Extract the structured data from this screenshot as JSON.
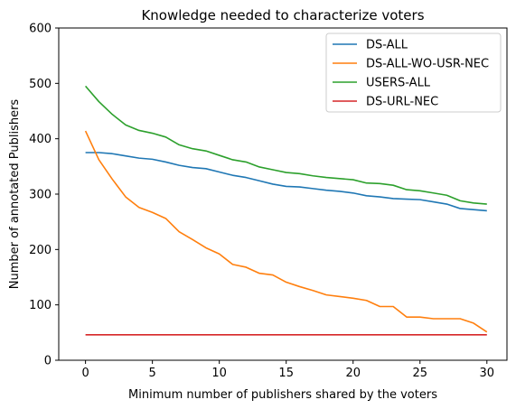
{
  "chart_data": {
    "type": "line",
    "title": "Knowledge needed to characterize voters",
    "xlabel": "Minimum number of publishers shared by the voters",
    "ylabel": "Number of annotated Publishers",
    "xlim": [
      -2,
      31.5
    ],
    "ylim": [
      0,
      600
    ],
    "xticks": [
      0,
      5,
      10,
      15,
      20,
      25,
      30
    ],
    "yticks": [
      0,
      100,
      200,
      300,
      400,
      500,
      600
    ],
    "grid": false,
    "legend_position": "top-right",
    "x": [
      0,
      1,
      2,
      3,
      4,
      5,
      6,
      7,
      8,
      9,
      10,
      11,
      12,
      13,
      14,
      15,
      16,
      17,
      18,
      19,
      20,
      21,
      22,
      23,
      24,
      25,
      26,
      27,
      28,
      29,
      30
    ],
    "series": [
      {
        "name": "DS-ALL",
        "color": "#1f77b4",
        "values": [
          375,
          375,
          373,
          369,
          365,
          363,
          358,
          352,
          348,
          346,
          340,
          334,
          330,
          324,
          318,
          314,
          313,
          310,
          307,
          305,
          302,
          297,
          295,
          292,
          291,
          290,
          286,
          282,
          274,
          272,
          270
        ]
      },
      {
        "name": "DS-ALL-WO-USR-NEC",
        "color": "#ff7f0e",
        "values": [
          414,
          362,
          327,
          295,
          276,
          267,
          256,
          232,
          218,
          203,
          192,
          173,
          168,
          157,
          154,
          141,
          133,
          126,
          118,
          115,
          112,
          108,
          97,
          97,
          78,
          78,
          75,
          75,
          75,
          67,
          51
        ]
      },
      {
        "name": "USERS-ALL",
        "color": "#2ca02c",
        "values": [
          495,
          467,
          444,
          425,
          415,
          410,
          403,
          389,
          382,
          378,
          370,
          362,
          358,
          349,
          344,
          339,
          337,
          333,
          330,
          328,
          326,
          320,
          319,
          316,
          308,
          306,
          302,
          298,
          288,
          284,
          282
        ]
      },
      {
        "name": "DS-URL-NEC",
        "color": "#d62728",
        "values": [
          46,
          46,
          46,
          46,
          46,
          46,
          46,
          46,
          46,
          46,
          46,
          46,
          46,
          46,
          46,
          46,
          46,
          46,
          46,
          46,
          46,
          46,
          46,
          46,
          46,
          46,
          46,
          46,
          46,
          46,
          46
        ]
      }
    ]
  }
}
